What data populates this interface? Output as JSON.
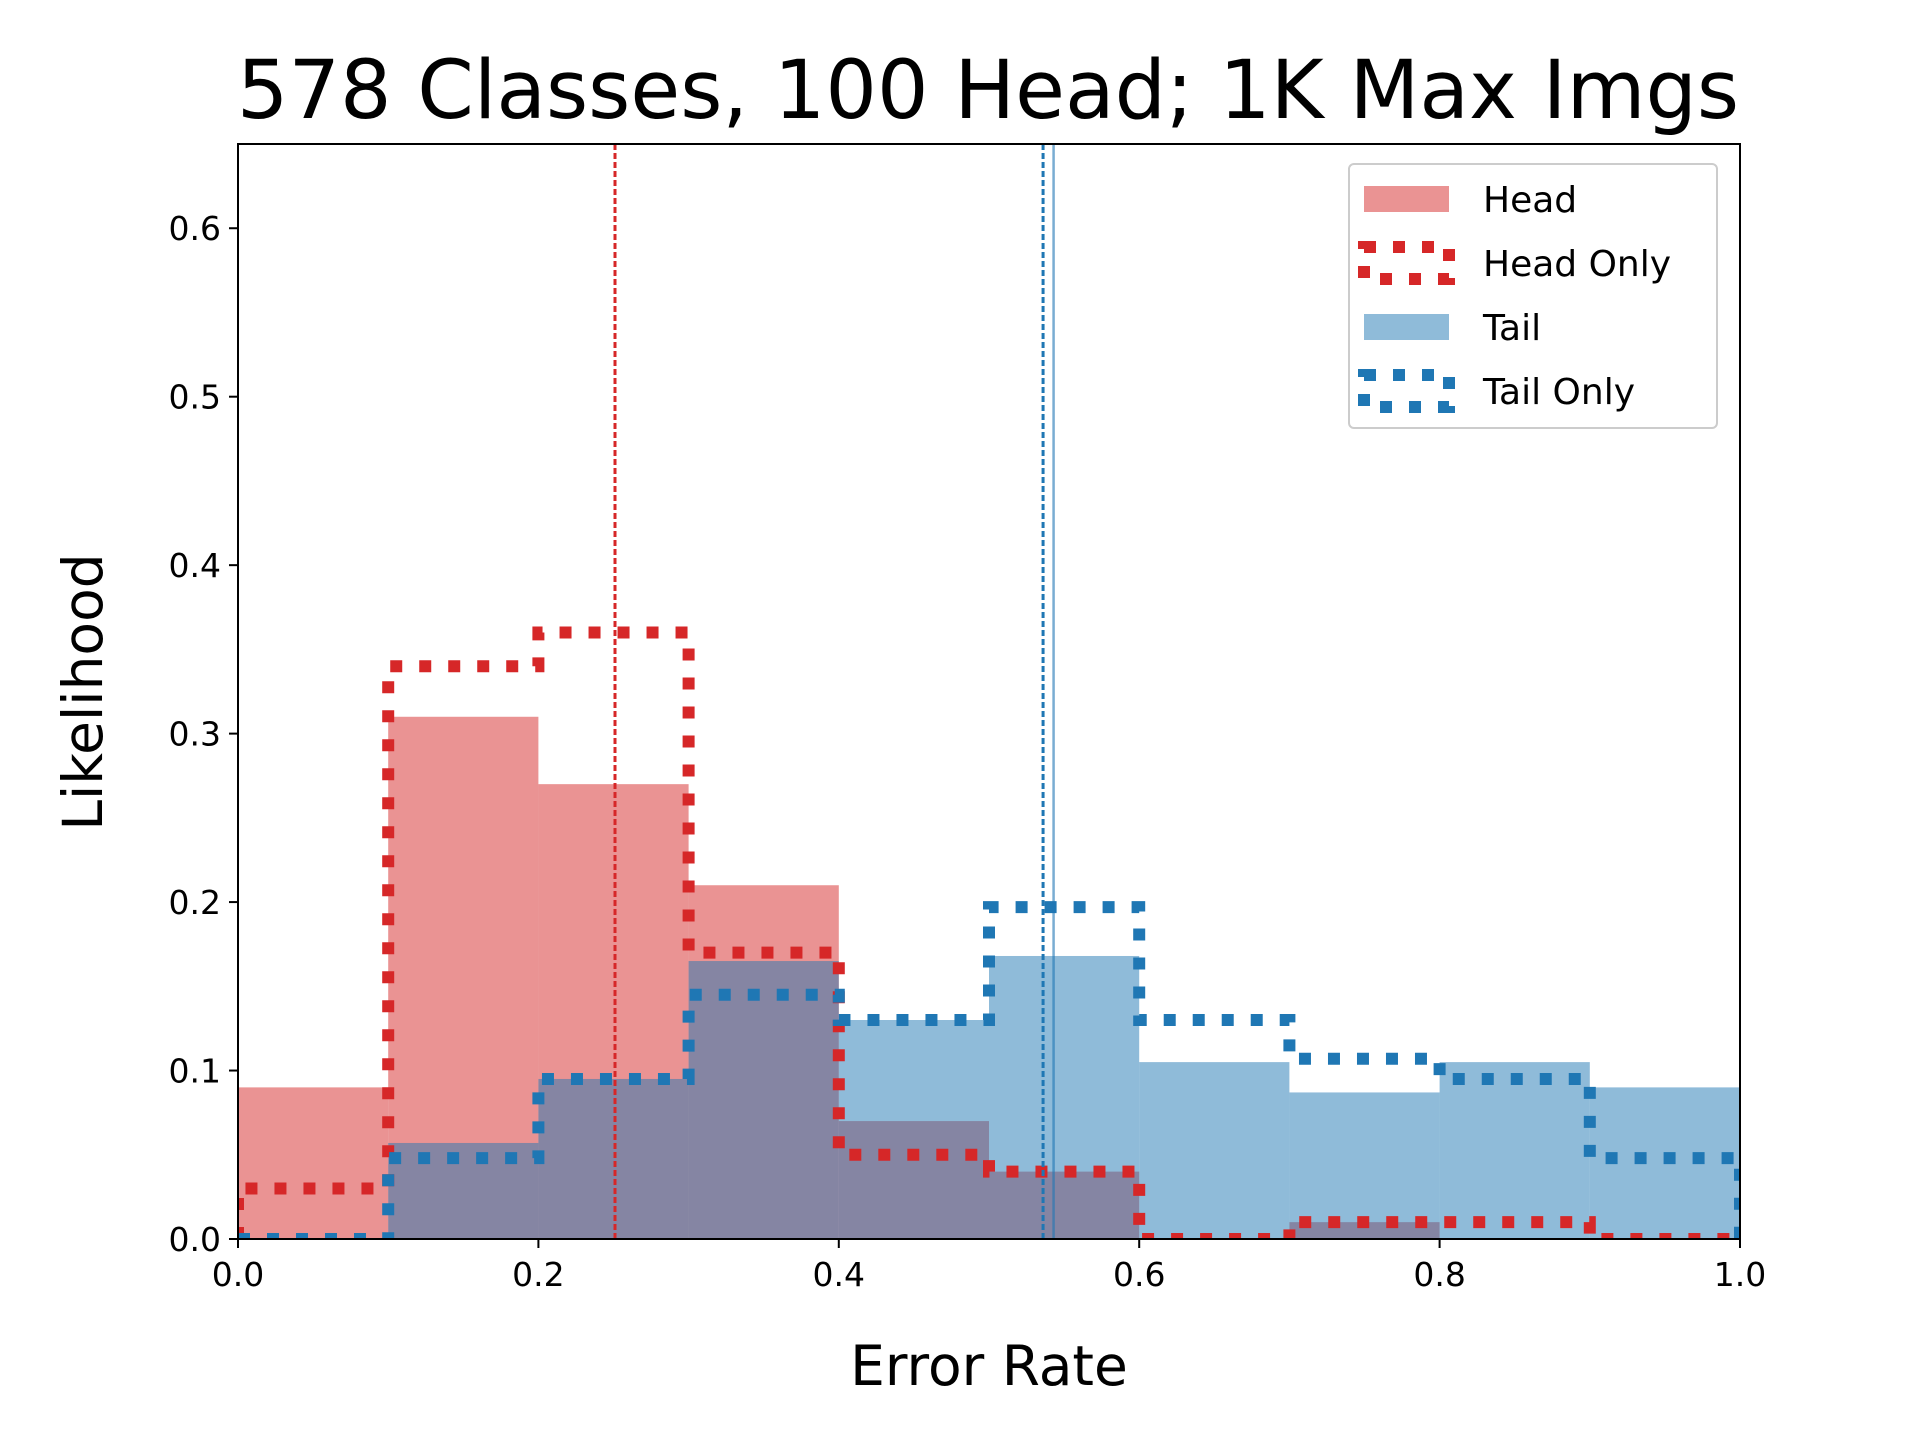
{
  "chart_data": {
    "type": "histogram",
    "title": "578 Classes, 100 Head; 1K Max Imgs",
    "xlabel": "Error Rate",
    "ylabel": "Likelihood",
    "xlim": [
      0.0,
      1.0
    ],
    "ylim": [
      0.0,
      0.65
    ],
    "x_ticks": [
      "0.0",
      "0.2",
      "0.4",
      "0.6",
      "0.8",
      "1.0"
    ],
    "y_ticks": [
      "0.0",
      "0.1",
      "0.2",
      "0.3",
      "0.4",
      "0.5",
      "0.6"
    ],
    "bin_edges": [
      0.0,
      0.1,
      0.2,
      0.3,
      0.4,
      0.5,
      0.6,
      0.7,
      0.8,
      0.9,
      1.0
    ],
    "legend_position": "top-right",
    "grid": false,
    "series": [
      {
        "name": "Head",
        "style": "filled",
        "color": "#d62728",
        "values": [
          0.09,
          0.31,
          0.27,
          0.21,
          0.07,
          0.04,
          0.0,
          0.01,
          0.0,
          0.0
        ]
      },
      {
        "name": "Head Only",
        "style": "dotted-step",
        "color": "#d62728",
        "values": [
          0.03,
          0.34,
          0.36,
          0.17,
          0.05,
          0.04,
          0.0,
          0.01,
          0.01,
          0.0
        ]
      },
      {
        "name": "Tail",
        "style": "filled",
        "color": "#1f77b4",
        "values": [
          0.0,
          0.057,
          0.095,
          0.165,
          0.13,
          0.168,
          0.105,
          0.087,
          0.105,
          0.09
        ]
      },
      {
        "name": "Tail Only",
        "style": "dotted-step",
        "color": "#1f77b4",
        "values": [
          0.0,
          0.048,
          0.095,
          0.145,
          0.13,
          0.197,
          0.13,
          0.107,
          0.095,
          0.048
        ]
      }
    ],
    "reference_lines": [
      {
        "x": 0.251,
        "color": "#d62728",
        "style": "dashed"
      },
      {
        "x": 0.536,
        "color": "#1f77b4",
        "style": "dashed"
      },
      {
        "x": 0.543,
        "color": "#1f77b4",
        "style": "solid"
      }
    ]
  }
}
